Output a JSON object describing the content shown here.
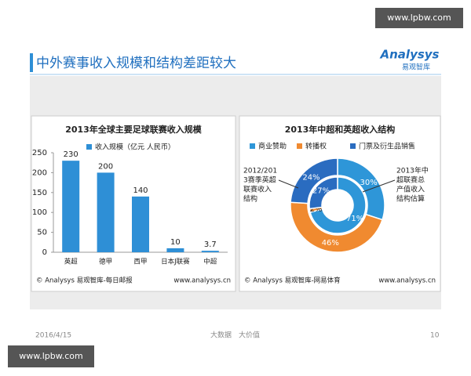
{
  "slide": {
    "title": "中外赛事收入规模和结构差距较大",
    "logo": {
      "name": "Analysys",
      "sub": "易观智库"
    },
    "date": "2016/4/15",
    "footer": [
      "大数据",
      "大价值"
    ],
    "page": "10",
    "watermark": [
      "www.lpbw.com",
      "www.lpbw.com"
    ]
  },
  "chart_data": [
    {
      "type": "bar",
      "title": "2013年全球主要足球联赛收入规模",
      "categories": [
        "英超",
        "德甲",
        "西甲",
        "日本J联赛",
        "中超"
      ],
      "series": [
        {
          "name": "收入规模（亿元 人民币）",
          "color": "#2e8fd6",
          "values": [
            230,
            200,
            140,
            10,
            3.7
          ]
        }
      ],
      "ylim": [
        0,
        250
      ],
      "yticks": [
        0,
        50,
        100,
        150,
        200,
        250
      ],
      "source": "© Analysys 易观智库-每日邮报",
      "source_url": "www.analysys.cn"
    },
    {
      "type": "donut",
      "title": "2013年中超和英超收入结构",
      "categories": [
        "商业赞助",
        "转播权",
        "门票及衍生品销售"
      ],
      "colors": [
        "#2e96d8",
        "#f08a30",
        "#2a6cc0"
      ],
      "rings": [
        {
          "label": [
            "2012/201",
            "3赛季英超",
            "联赛收入",
            "结构"
          ],
          "values": [
            30,
            46,
            24
          ],
          "value_labels": [
            "30%",
            "46%",
            "24%"
          ]
        },
        {
          "label": [
            "2013年中",
            "超联赛总",
            "产值收入",
            "结构估算"
          ],
          "values": [
            71,
            2,
            27
          ],
          "value_labels": [
            "71%",
            "2%",
            "27%"
          ]
        }
      ],
      "source": "© Analysys 易观智库-网易体育",
      "source_url": "www.analysys.cn"
    }
  ]
}
